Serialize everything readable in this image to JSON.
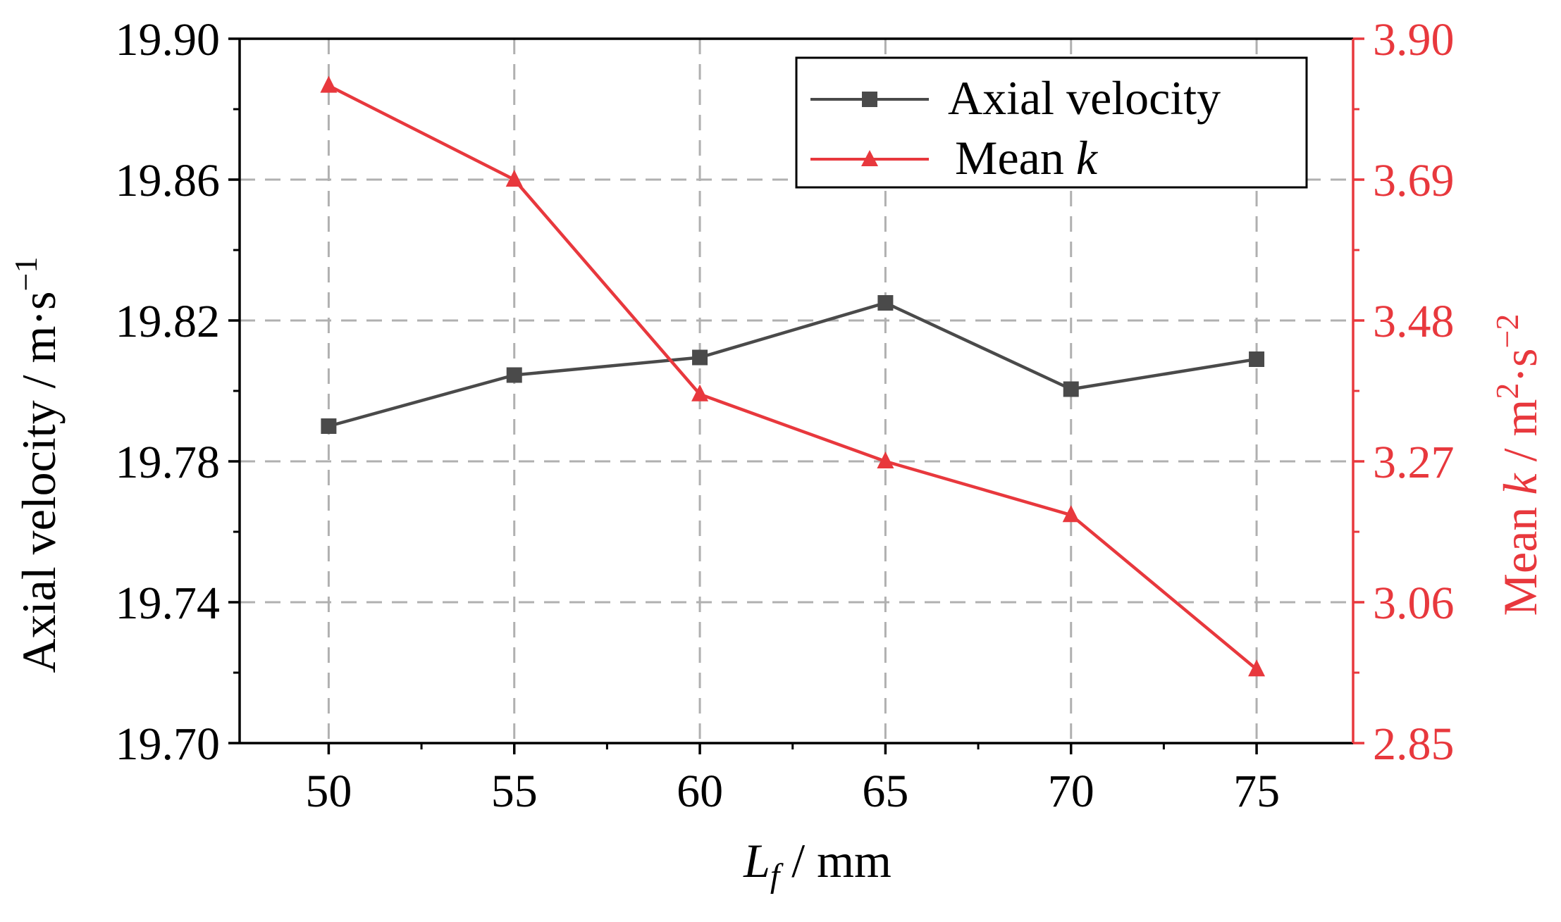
{
  "chart_data": {
    "type": "line",
    "title": "",
    "x": [
      50,
      55,
      60,
      65,
      70,
      75
    ],
    "xticks": [
      "50",
      "55",
      "60",
      "65",
      "70",
      "75"
    ],
    "xlim": [
      47.6,
      77.6
    ],
    "xlabel": {
      "variable": "L",
      "subscript": "f",
      "unit": " / mm"
    },
    "y_left": {
      "label_main": "Axial velocity / m·s",
      "label_sup": "−1",
      "ylim": [
        19.7,
        19.9
      ],
      "ticks": [
        "19.70",
        "19.74",
        "19.78",
        "19.82",
        "19.86",
        "19.90"
      ],
      "tick_values": [
        19.7,
        19.74,
        19.78,
        19.82,
        19.86,
        19.9
      ],
      "color": "#000000"
    },
    "y_right": {
      "label_prefix": "Mean ",
      "label_var": "k",
      "label_mid": " / m",
      "label_sup1": "2",
      "label_mid2": "·s",
      "label_sup2": "−2",
      "ylim": [
        2.85,
        3.9
      ],
      "ticks": [
        "2.85",
        "3.06",
        "3.27",
        "3.48",
        "3.69",
        "3.90"
      ],
      "tick_values": [
        2.85,
        3.06,
        3.27,
        3.48,
        3.69,
        3.9
      ],
      "color": "#e8383d"
    },
    "grid": true,
    "legend_position": "top-right",
    "series": [
      {
        "name": "Axial velocity",
        "axis": "left",
        "marker": "square",
        "color": "#4a4a4a",
        "values": [
          19.79,
          19.8045,
          19.8095,
          19.825,
          19.8005,
          19.809
        ]
      },
      {
        "name_prefix": "Mean ",
        "name_var": "k",
        "axis": "right",
        "marker": "triangle",
        "color": "#e8383d",
        "values": [
          3.83,
          3.69,
          3.37,
          3.27,
          3.19,
          2.96
        ]
      }
    ]
  }
}
